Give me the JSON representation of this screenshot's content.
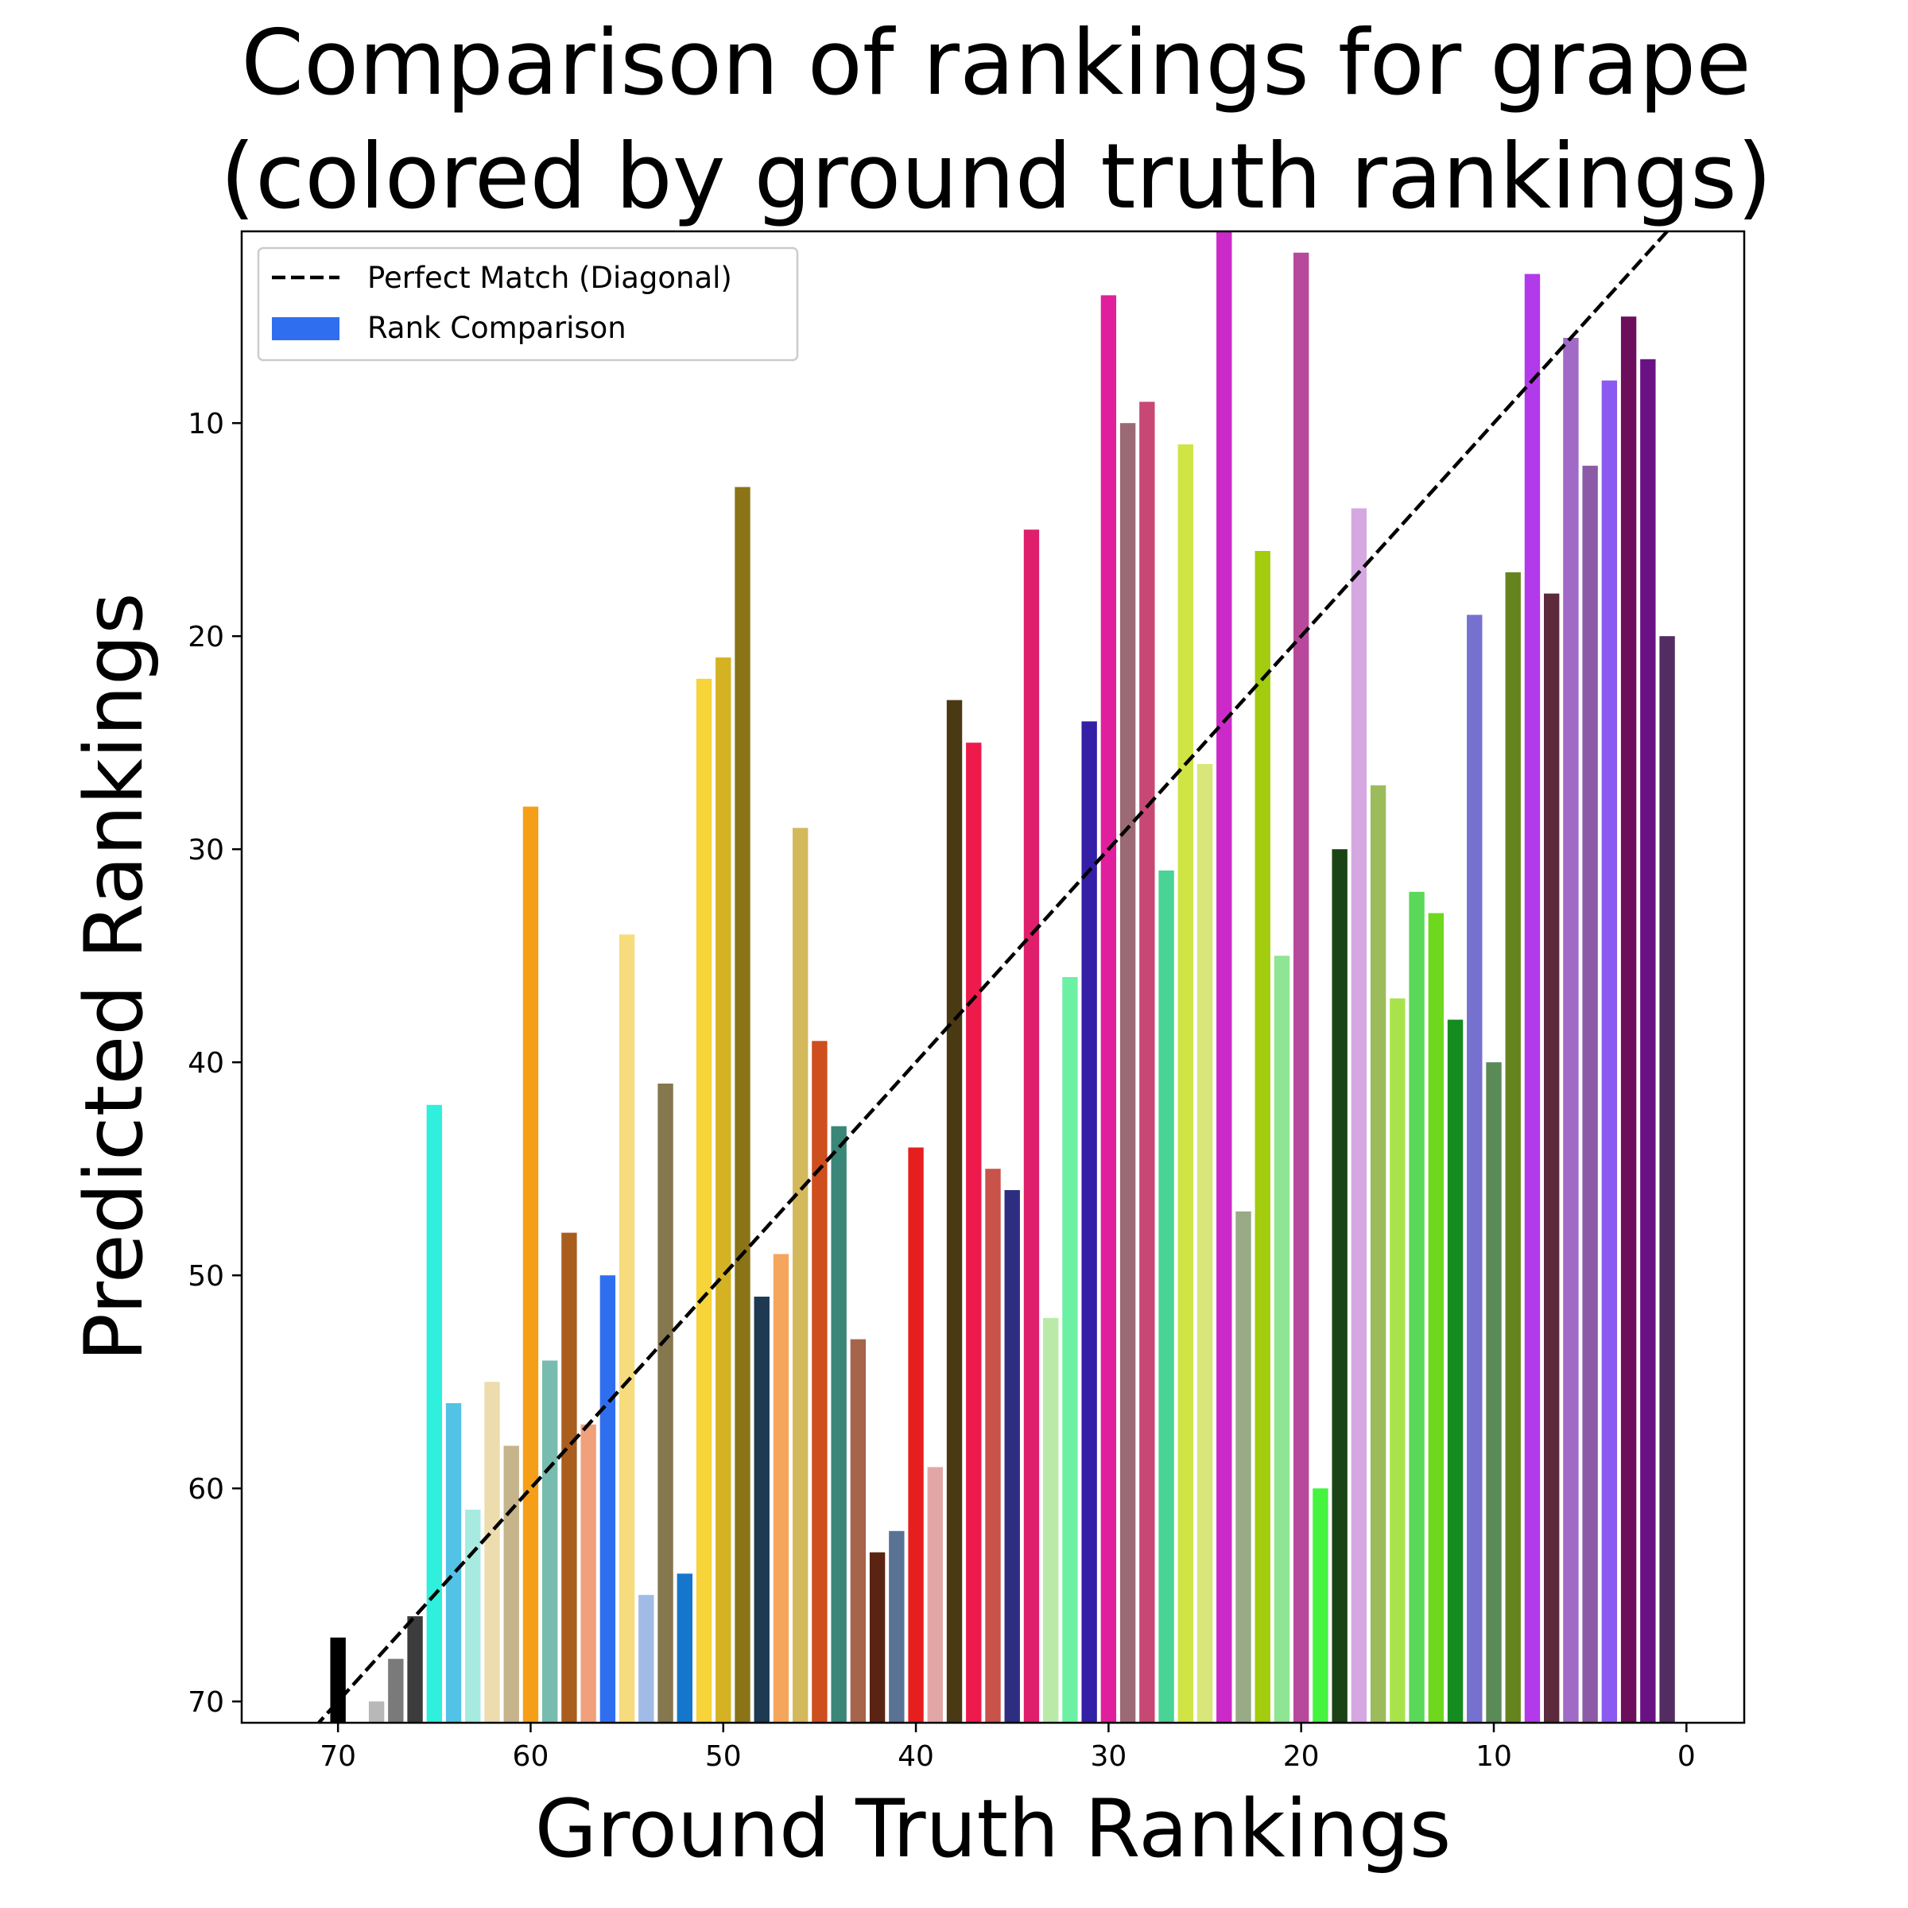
{
  "chart_data": {
    "type": "bar",
    "title_line1": "Comparison of rankings for grape",
    "title_line2": "(colored by ground truth rankings)",
    "xlabel": "Ground Truth Rankings",
    "ylabel": "Predicted Rankings",
    "x_axis_inverted": true,
    "y_axis_inverted": true,
    "xlim": [
      75,
      -3
    ],
    "ylim": [
      71,
      1
    ],
    "xticks": [
      70,
      60,
      50,
      40,
      30,
      20,
      10,
      0
    ],
    "yticks": [
      10,
      20,
      30,
      40,
      50,
      60,
      70
    ],
    "legend": {
      "placement": "upper left",
      "entries": [
        {
          "label": "Perfect Match (Diagonal)",
          "style": "dashed-line",
          "color": "#000000"
        },
        {
          "label": "Rank Comparison",
          "style": "patch",
          "color": "#2f6fef"
        }
      ]
    },
    "diagonal": {
      "style": "dashed",
      "color": "#000000"
    },
    "bars": [
      {
        "x": 70,
        "y": 67,
        "color": "#000000"
      },
      {
        "x": 68,
        "y": 70,
        "color": "#b8b8b8"
      },
      {
        "x": 67,
        "y": 68,
        "color": "#7a7a7a"
      },
      {
        "x": 66,
        "y": 66,
        "color": "#3c3c3c"
      },
      {
        "x": 65,
        "y": 42,
        "color": "#2ff0dc"
      },
      {
        "x": 64,
        "y": 56,
        "color": "#52c3e6"
      },
      {
        "x": 63,
        "y": 61,
        "color": "#a6eae0"
      },
      {
        "x": 62,
        "y": 55,
        "color": "#eddcad"
      },
      {
        "x": 61,
        "y": 58,
        "color": "#c6b48a"
      },
      {
        "x": 60,
        "y": 28,
        "color": "#f59f18"
      },
      {
        "x": 59,
        "y": 54,
        "color": "#77bcae"
      },
      {
        "x": 58,
        "y": 48,
        "color": "#a95e1e"
      },
      {
        "x": 57,
        "y": 57,
        "color": "#f0a07a"
      },
      {
        "x": 56,
        "y": 50,
        "color": "#2f6fef"
      },
      {
        "x": 55,
        "y": 34,
        "color": "#f7dc7e"
      },
      {
        "x": 54,
        "y": 65,
        "color": "#a0bce6"
      },
      {
        "x": 53,
        "y": 41,
        "color": "#85774e"
      },
      {
        "x": 52,
        "y": 64,
        "color": "#1477cc"
      },
      {
        "x": 51,
        "y": 22,
        "color": "#f6d43a"
      },
      {
        "x": 50,
        "y": 21,
        "color": "#d5b223"
      },
      {
        "x": 49,
        "y": 13,
        "color": "#8b7417"
      },
      {
        "x": 48,
        "y": 51,
        "color": "#1d3a52"
      },
      {
        "x": 47,
        "y": 49,
        "color": "#f5a65c"
      },
      {
        "x": 46,
        "y": 29,
        "color": "#d4b85c"
      },
      {
        "x": 45,
        "y": 39,
        "color": "#ce4e1e"
      },
      {
        "x": 44,
        "y": 43,
        "color": "#3a8678"
      },
      {
        "x": 43,
        "y": 53,
        "color": "#a6644a"
      },
      {
        "x": 42,
        "y": 63,
        "color": "#5b2412"
      },
      {
        "x": 41,
        "y": 62,
        "color": "#5a7394"
      },
      {
        "x": 40,
        "y": 44,
        "color": "#e61e1e"
      },
      {
        "x": 39,
        "y": 59,
        "color": "#e3a6a6"
      },
      {
        "x": 38,
        "y": 23,
        "color": "#4a3a14"
      },
      {
        "x": 37,
        "y": 25,
        "color": "#ee1a4c"
      },
      {
        "x": 36,
        "y": 45,
        "color": "#c9524a"
      },
      {
        "x": 35,
        "y": 46,
        "color": "#2d2e82"
      },
      {
        "x": 34,
        "y": 15,
        "color": "#e01f6c"
      },
      {
        "x": 33,
        "y": 52,
        "color": "#b9eaaa"
      },
      {
        "x": 32,
        "y": 36,
        "color": "#6cf0a4"
      },
      {
        "x": 31,
        "y": 24,
        "color": "#3320a6"
      },
      {
        "x": 30,
        "y": 4,
        "color": "#e01f9c"
      },
      {
        "x": 29,
        "y": 10,
        "color": "#9c6a74"
      },
      {
        "x": 28,
        "y": 9,
        "color": "#c74874"
      },
      {
        "x": 27,
        "y": 31,
        "color": "#49d394"
      },
      {
        "x": 26,
        "y": 11,
        "color": "#d0e444"
      },
      {
        "x": 25,
        "y": 26,
        "color": "#d8e67a"
      },
      {
        "x": 24,
        "y": 1,
        "color": "#cc2ac8"
      },
      {
        "x": 23,
        "y": 47,
        "color": "#98aa86"
      },
      {
        "x": 22,
        "y": 16,
        "color": "#a3cc0e"
      },
      {
        "x": 21,
        "y": 35,
        "color": "#8ee594"
      },
      {
        "x": 20,
        "y": 2,
        "color": "#b8489c"
      },
      {
        "x": 19,
        "y": 60,
        "color": "#44f43e"
      },
      {
        "x": 18,
        "y": 30,
        "color": "#1b4416"
      },
      {
        "x": 17,
        "y": 14,
        "color": "#d6a8e2"
      },
      {
        "x": 16,
        "y": 27,
        "color": "#9cbc5c"
      },
      {
        "x": 15,
        "y": 37,
        "color": "#a9e34c"
      },
      {
        "x": 14,
        "y": 32,
        "color": "#5ad85a"
      },
      {
        "x": 13,
        "y": 33,
        "color": "#6ed81e"
      },
      {
        "x": 12,
        "y": 38,
        "color": "#158c20"
      },
      {
        "x": 11,
        "y": 19,
        "color": "#7670ce"
      },
      {
        "x": 10,
        "y": 40,
        "color": "#5a8a56"
      },
      {
        "x": 9,
        "y": 17,
        "color": "#66841e"
      },
      {
        "x": 8,
        "y": 3,
        "color": "#b23aea"
      },
      {
        "x": 7,
        "y": 18,
        "color": "#5c2a3a"
      },
      {
        "x": 6,
        "y": 6,
        "color": "#a06ac6"
      },
      {
        "x": 5,
        "y": 12,
        "color": "#8c5aa6"
      },
      {
        "x": 4,
        "y": 8,
        "color": "#8b5af0"
      },
      {
        "x": 3,
        "y": 5,
        "color": "#6c0e5c"
      },
      {
        "x": 2,
        "y": 7,
        "color": "#6a1284"
      },
      {
        "x": 1,
        "y": 20,
        "color": "#522c62"
      }
    ]
  }
}
